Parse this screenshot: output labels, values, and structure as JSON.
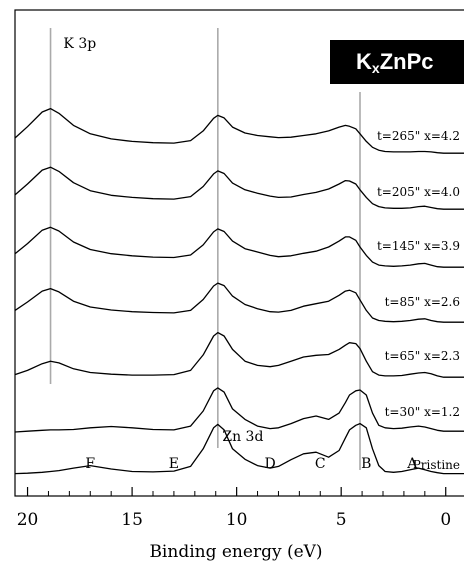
{
  "chart_data": {
    "type": "line",
    "title": "KxZnPc",
    "title_parts": {
      "a": "K",
      "sub": "x",
      "b": "ZnPc"
    },
    "xlabel": "Binding energy (eV)",
    "ylabel": "",
    "x_reversed": true,
    "xlim": [
      20.6,
      -1.4
    ],
    "x_ticks": [
      20,
      15,
      10,
      5,
      0
    ],
    "x_tick_labels": [
      "20",
      "15",
      "10",
      "5",
      "0"
    ],
    "grid": false,
    "reference_lines_x": [
      18.9,
      10.9,
      4.1
    ],
    "peak_labels": [
      {
        "text": "K 3p",
        "x": 17.5
      },
      {
        "text": "Zn 3d",
        "x": 9.7
      },
      {
        "text": "F",
        "x": 17.0
      },
      {
        "text": "E",
        "x": 13.0
      },
      {
        "text": "D",
        "x": 8.4
      },
      {
        "text": "C",
        "x": 6.0
      },
      {
        "text": "B",
        "x": 3.8
      },
      {
        "text": "A",
        "x": 1.6
      }
    ],
    "series": [
      {
        "name": "t=265\" x=4.2",
        "x": [
          20.6,
          20,
          19.3,
          18.9,
          18.5,
          17.8,
          17,
          16,
          15,
          14,
          13,
          12.2,
          11.6,
          11.1,
          10.9,
          10.6,
          10.2,
          9.6,
          9,
          8.4,
          8,
          7.4,
          6.8,
          6.2,
          5.6,
          5.1,
          4.8,
          4.6,
          4.3,
          4.1,
          3.8,
          3.5,
          3.2,
          2.9,
          2.5,
          2.1,
          1.7,
          1.3,
          1.0,
          0.7,
          0.4,
          0.1,
          -0.4,
          -1.4
        ],
        "y": [
          0.38,
          0.65,
          1.0,
          1.08,
          0.97,
          0.68,
          0.48,
          0.36,
          0.3,
          0.27,
          0.26,
          0.32,
          0.55,
          0.85,
          0.92,
          0.86,
          0.64,
          0.5,
          0.44,
          0.41,
          0.39,
          0.4,
          0.44,
          0.48,
          0.55,
          0.64,
          0.68,
          0.66,
          0.6,
          0.48,
          0.3,
          0.16,
          0.09,
          0.06,
          0.05,
          0.05,
          0.05,
          0.06,
          0.06,
          0.05,
          0.03,
          0.02,
          0.02,
          0.02
        ]
      },
      {
        "name": "t=205\" x=4.0",
        "x": [
          20.6,
          20,
          19.3,
          18.9,
          18.5,
          17.8,
          17,
          16,
          15,
          14,
          13,
          12.2,
          11.6,
          11.1,
          10.9,
          10.6,
          10.2,
          9.6,
          9,
          8.4,
          8,
          7.4,
          6.8,
          6.2,
          5.6,
          5.1,
          4.8,
          4.6,
          4.3,
          4.1,
          3.8,
          3.5,
          3.2,
          2.9,
          2.5,
          2.1,
          1.7,
          1.3,
          1.0,
          0.7,
          0.4,
          0.1,
          -0.4,
          -1.4
        ],
        "y": [
          0.36,
          0.62,
          0.95,
          1.02,
          0.92,
          0.65,
          0.46,
          0.35,
          0.3,
          0.27,
          0.26,
          0.32,
          0.56,
          0.86,
          0.93,
          0.87,
          0.64,
          0.48,
          0.4,
          0.33,
          0.3,
          0.31,
          0.37,
          0.42,
          0.5,
          0.62,
          0.7,
          0.69,
          0.62,
          0.48,
          0.3,
          0.15,
          0.08,
          0.05,
          0.04,
          0.04,
          0.05,
          0.08,
          0.09,
          0.06,
          0.03,
          0.02,
          0.02,
          0.02
        ]
      },
      {
        "name": "t=145\" x=3.9",
        "x": [
          20.6,
          20,
          19.3,
          18.9,
          18.5,
          17.8,
          17,
          16,
          15,
          14,
          13,
          12.2,
          11.6,
          11.1,
          10.9,
          10.6,
          10.2,
          9.6,
          9,
          8.4,
          8,
          7.4,
          6.8,
          6.2,
          5.6,
          5.1,
          4.8,
          4.6,
          4.3,
          4.1,
          3.8,
          3.5,
          3.2,
          2.9,
          2.5,
          2.1,
          1.7,
          1.3,
          1.0,
          0.7,
          0.4,
          0.1,
          -0.4,
          -1.4
        ],
        "y": [
          0.34,
          0.58,
          0.9,
          0.97,
          0.88,
          0.62,
          0.44,
          0.34,
          0.29,
          0.26,
          0.25,
          0.31,
          0.55,
          0.86,
          0.93,
          0.87,
          0.64,
          0.46,
          0.38,
          0.3,
          0.27,
          0.29,
          0.35,
          0.4,
          0.5,
          0.64,
          0.74,
          0.74,
          0.66,
          0.5,
          0.3,
          0.14,
          0.07,
          0.05,
          0.04,
          0.05,
          0.07,
          0.1,
          0.11,
          0.07,
          0.03,
          0.02,
          0.02,
          0.02
        ]
      },
      {
        "name": "t=85\" x=2.6",
        "x": [
          20.6,
          20,
          19.3,
          18.9,
          18.5,
          17.8,
          17,
          16,
          15,
          14,
          13,
          12.2,
          11.6,
          11.1,
          10.9,
          10.6,
          10.2,
          9.6,
          9,
          8.4,
          8,
          7.4,
          6.8,
          6.2,
          5.6,
          5.1,
          4.8,
          4.6,
          4.3,
          4.1,
          3.8,
          3.5,
          3.2,
          2.9,
          2.5,
          2.1,
          1.7,
          1.3,
          1.0,
          0.7,
          0.4,
          0.1,
          -0.4,
          -1.4
        ],
        "y": [
          0.3,
          0.5,
          0.76,
          0.82,
          0.74,
          0.52,
          0.38,
          0.31,
          0.27,
          0.25,
          0.24,
          0.3,
          0.56,
          0.88,
          0.95,
          0.89,
          0.64,
          0.44,
          0.34,
          0.27,
          0.26,
          0.3,
          0.4,
          0.46,
          0.52,
          0.66,
          0.76,
          0.78,
          0.72,
          0.55,
          0.3,
          0.12,
          0.06,
          0.04,
          0.03,
          0.04,
          0.06,
          0.09,
          0.1,
          0.06,
          0.03,
          0.02,
          0.02,
          0.02
        ]
      },
      {
        "name": "t=65\" x=2.3",
        "x": [
          20.6,
          20,
          19.3,
          18.9,
          18.5,
          17.8,
          17,
          16,
          15,
          14,
          13,
          12.2,
          11.6,
          11.1,
          10.9,
          10.6,
          10.2,
          9.6,
          9,
          8.4,
          8,
          7.4,
          6.8,
          6.2,
          5.6,
          5.1,
          4.8,
          4.6,
          4.3,
          4.1,
          3.8,
          3.5,
          3.2,
          2.9,
          2.5,
          2.1,
          1.7,
          1.3,
          1.0,
          0.7,
          0.4,
          0.1,
          -0.4,
          -1.4
        ],
        "y": [
          0.08,
          0.18,
          0.34,
          0.4,
          0.36,
          0.22,
          0.13,
          0.09,
          0.07,
          0.07,
          0.08,
          0.18,
          0.55,
          1.0,
          1.08,
          1.0,
          0.68,
          0.4,
          0.3,
          0.27,
          0.3,
          0.4,
          0.5,
          0.54,
          0.56,
          0.68,
          0.78,
          0.84,
          0.82,
          0.7,
          0.4,
          0.15,
          0.07,
          0.05,
          0.05,
          0.06,
          0.09,
          0.12,
          0.13,
          0.1,
          0.05,
          0.02,
          0.02,
          0.02
        ]
      },
      {
        "name": "t=30\" x=1.2",
        "x": [
          20.6,
          20,
          19.3,
          18.9,
          18.5,
          17.8,
          17,
          16,
          15,
          14,
          13,
          12.2,
          11.6,
          11.1,
          10.9,
          10.6,
          10.2,
          9.6,
          9,
          8.4,
          8,
          7.4,
          6.8,
          6.2,
          5.6,
          5.1,
          4.8,
          4.6,
          4.3,
          4.1,
          3.8,
          3.5,
          3.2,
          2.9,
          2.5,
          2.1,
          1.7,
          1.3,
          1.0,
          0.7,
          0.4,
          0.1,
          -0.4,
          -1.4
        ],
        "y": [
          0.0,
          0.02,
          0.04,
          0.05,
          0.05,
          0.06,
          0.1,
          0.13,
          0.1,
          0.06,
          0.05,
          0.14,
          0.5,
          0.98,
          1.05,
          0.95,
          0.55,
          0.3,
          0.14,
          0.08,
          0.1,
          0.2,
          0.32,
          0.38,
          0.3,
          0.45,
          0.7,
          0.88,
          0.98,
          1.0,
          0.88,
          0.45,
          0.16,
          0.1,
          0.08,
          0.09,
          0.12,
          0.14,
          0.12,
          0.08,
          0.04,
          0.02,
          0.02,
          0.02
        ]
      },
      {
        "name": "Pristine",
        "x": [
          20.6,
          20,
          19.3,
          18.9,
          18.5,
          17.8,
          17,
          16,
          15,
          14,
          13,
          12.2,
          11.6,
          11.1,
          10.9,
          10.6,
          10.2,
          9.6,
          9,
          8.4,
          8,
          7.4,
          6.8,
          6.2,
          5.6,
          5.1,
          4.8,
          4.6,
          4.3,
          4.1,
          3.8,
          3.5,
          3.2,
          2.9,
          2.5,
          2.1,
          1.7,
          1.3,
          1.0,
          0.7,
          0.4,
          0.1,
          -0.4,
          -1.4
        ],
        "y": [
          0.01,
          0.02,
          0.04,
          0.06,
          0.08,
          0.14,
          0.2,
          0.12,
          0.06,
          0.05,
          0.07,
          0.18,
          0.6,
          1.1,
          1.18,
          1.05,
          0.6,
          0.35,
          0.2,
          0.14,
          0.18,
          0.34,
          0.48,
          0.52,
          0.4,
          0.56,
          0.86,
          1.05,
          1.16,
          1.2,
          1.1,
          0.6,
          0.2,
          0.06,
          0.04,
          0.06,
          0.1,
          0.14,
          0.1,
          0.06,
          0.03,
          0.01,
          0.01,
          0.01
        ]
      }
    ]
  }
}
